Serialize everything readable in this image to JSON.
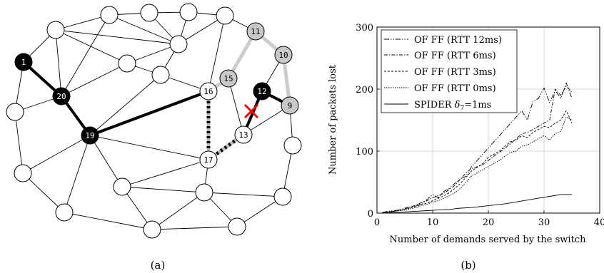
{
  "panel_a": {
    "caption": "(a)",
    "labels": {
      "1": "1",
      "9": "9",
      "10": "10",
      "11": "11",
      "12": "12",
      "13": "13",
      "15": "15",
      "16": "16",
      "17": "17",
      "19": "19",
      "20": "20"
    },
    "colors": {
      "primary_path": "#000000",
      "backup_path": "#cccccc",
      "failure_marker": "#ff0000",
      "dark_node": "#000000",
      "grey_node": "#c8c8c8",
      "plain_node": "#ffffff"
    }
  },
  "panel_b": {
    "caption": "(b)",
    "chart_data": {
      "type": "line",
      "xlabel": "Number of demands served by the switch",
      "ylabel": "Number of packets lost",
      "xlim": [
        0,
        40
      ],
      "ylim": [
        0,
        300
      ],
      "xticks": [
        "0",
        "10",
        "20",
        "30",
        "40"
      ],
      "yticks": [
        "0",
        "100",
        "200",
        "300"
      ],
      "grid": true,
      "legend_position": "top-left",
      "legend": {
        "s1": "OF FF (RTT 12ms)",
        "s2": "OF FF (RTT 6ms)",
        "s3": "OF FF (RTT 3ms)",
        "s4": "OF FF (RTT 0ms)",
        "s5_prefix": "SPIDER ",
        "s5_delta": "δ",
        "s5_sub": "7",
        "s5_suffix": "=1ms"
      },
      "series": [
        {
          "name": "OF FF (RTT 12ms)",
          "dash": "7,2,1.5,2,1.5,2",
          "x": [
            1,
            2,
            3,
            4,
            5,
            6,
            7,
            8,
            9,
            10,
            11,
            12,
            13,
            14,
            15,
            16,
            17,
            18,
            19,
            20,
            21,
            22,
            23,
            24,
            25,
            26,
            27,
            28,
            29,
            30,
            31,
            32,
            33,
            34,
            35
          ],
          "y": [
            1,
            3,
            4,
            5,
            7,
            10,
            12,
            15,
            22,
            30,
            25,
            35,
            40,
            48,
            55,
            60,
            75,
            85,
            95,
            105,
            115,
            125,
            135,
            145,
            155,
            165,
            150,
            180,
            185,
            202,
            178,
            198,
            185,
            210,
            185
          ]
        },
        {
          "name": "OF FF (RTT 6ms)",
          "dash": "5,2,1.5,2",
          "x": [
            1,
            2,
            3,
            4,
            5,
            6,
            7,
            8,
            9,
            10,
            11,
            12,
            13,
            14,
            15,
            16,
            17,
            18,
            19,
            20,
            21,
            22,
            23,
            24,
            25,
            26,
            27,
            28,
            29,
            30,
            31,
            32,
            33,
            34,
            35
          ],
          "y": [
            1,
            2,
            3,
            5,
            8,
            10,
            13,
            17,
            20,
            25,
            28,
            32,
            38,
            45,
            55,
            65,
            72,
            75,
            78,
            85,
            92,
            98,
            105,
            112,
            120,
            128,
            130,
            135,
            140,
            145,
            150,
            200,
            190,
            205,
            195
          ]
        },
        {
          "name": "OF FF (RTT 3ms)",
          "dash": "3,2",
          "x": [
            1,
            2,
            3,
            4,
            5,
            6,
            7,
            8,
            9,
            10,
            11,
            12,
            13,
            14,
            15,
            16,
            17,
            18,
            19,
            20,
            21,
            22,
            23,
            24,
            25,
            26,
            27,
            28,
            29,
            30,
            31,
            32,
            33,
            34,
            35
          ],
          "y": [
            1,
            2,
            3,
            4,
            6,
            8,
            11,
            14,
            16,
            20,
            24,
            28,
            33,
            40,
            48,
            58,
            68,
            74,
            80,
            90,
            95,
            100,
            108,
            115,
            118,
            125,
            122,
            130,
            135,
            140,
            138,
            145,
            150,
            165,
            145
          ]
        },
        {
          "name": "OF FF (RTT 0ms)",
          "dash": "1.5,1.5",
          "x": [
            1,
            2,
            3,
            4,
            5,
            6,
            7,
            8,
            9,
            10,
            11,
            12,
            13,
            14,
            15,
            16,
            17,
            18,
            19,
            20,
            21,
            22,
            23,
            24,
            25,
            26,
            27,
            28,
            29,
            30,
            31,
            32,
            33,
            34,
            35
          ],
          "y": [
            1,
            2,
            3,
            4,
            5,
            7,
            9,
            12,
            14,
            18,
            20,
            24,
            28,
            33,
            40,
            50,
            60,
            65,
            70,
            75,
            80,
            85,
            92,
            98,
            100,
            108,
            110,
            115,
            120,
            125,
            118,
            128,
            132,
            155,
            150
          ]
        },
        {
          "name": "SPIDER δ7=1ms",
          "dash": "",
          "x": [
            1,
            3,
            5,
            7,
            9,
            11,
            13,
            15,
            17,
            19,
            21,
            23,
            25,
            27,
            29,
            31,
            33,
            35
          ],
          "y": [
            0,
            1,
            2,
            3,
            4,
            5,
            6,
            8,
            9,
            11,
            13,
            15,
            18,
            21,
            24,
            27,
            30,
            30
          ]
        }
      ]
    }
  }
}
